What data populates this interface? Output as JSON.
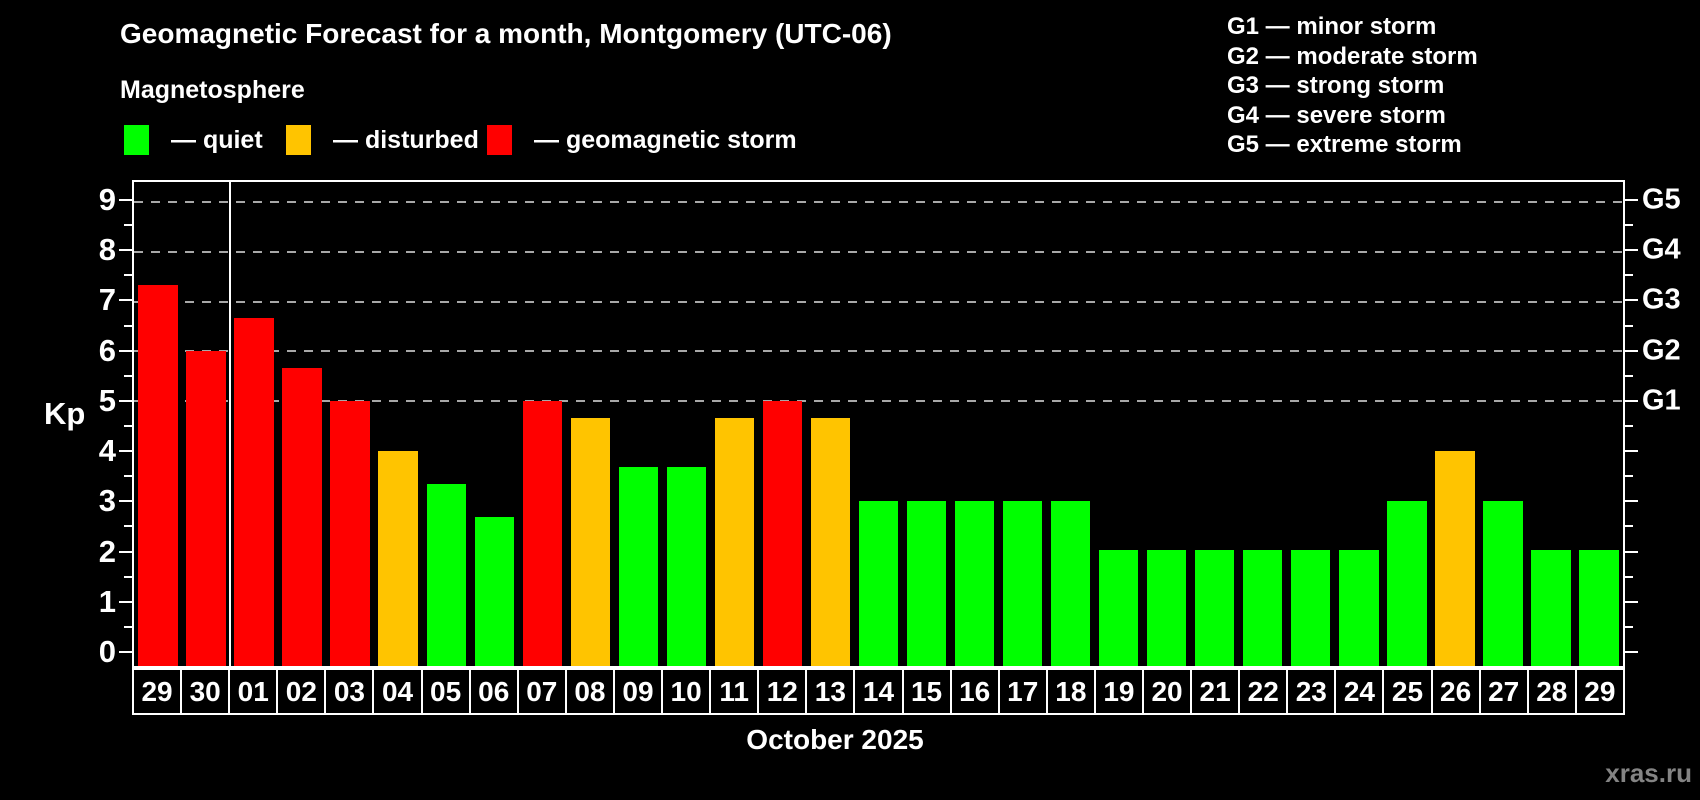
{
  "header": {
    "title": "Geomagnetic Forecast for a month, Montgomery (UTC-06)",
    "subtitle": "Magnetosphere"
  },
  "legend": {
    "items": [
      {
        "label": "— quiet",
        "status": "quiet"
      },
      {
        "label": "— disturbed",
        "status": "disturbed"
      },
      {
        "label": "— geomagnetic storm",
        "status": "storm"
      }
    ]
  },
  "g_scale_legend": {
    "lines": [
      "G1 — minor storm",
      "G2 — moderate storm",
      "G3 — strong storm",
      "G4 — severe storm",
      "G5 — extreme storm"
    ]
  },
  "colors": {
    "quiet": "#00ff00",
    "disturbed": "#ffc400",
    "storm": "#ff0000",
    "grid": "#a8a8a8",
    "axis": "#ffffff"
  },
  "watermark": "xras.ru",
  "chart_data": {
    "type": "bar",
    "title": "Geomagnetic Forecast for a month, Montgomery (UTC-06)",
    "xlabel": "October 2025",
    "ylabel": "Kp",
    "ylim": [
      -0.32,
      9.4
    ],
    "yticks": [
      0,
      1,
      2,
      3,
      4,
      5,
      6,
      7,
      8,
      9
    ],
    "minor_tick_step": 0.5,
    "grid_values": [
      5,
      6,
      7,
      8,
      9
    ],
    "grid_style": "dashed",
    "right_axis_labels": [
      {
        "label": "G5",
        "kp": 9
      },
      {
        "label": "G4",
        "kp": 8
      },
      {
        "label": "G3",
        "kp": 7
      },
      {
        "label": "G2",
        "kp": 6
      },
      {
        "label": "G1",
        "kp": 5
      }
    ],
    "month_separator_after_index": 1,
    "categories": [
      "29",
      "30",
      "01",
      "02",
      "03",
      "04",
      "05",
      "06",
      "07",
      "08",
      "09",
      "10",
      "11",
      "12",
      "13",
      "14",
      "15",
      "16",
      "17",
      "18",
      "19",
      "20",
      "21",
      "22",
      "23",
      "24",
      "25",
      "26",
      "27",
      "28",
      "29"
    ],
    "values": [
      7.33,
      6,
      6.67,
      5.67,
      5,
      4,
      3.33,
      2.67,
      5,
      4.67,
      3.67,
      3.67,
      4.67,
      5,
      4.67,
      3,
      3,
      3,
      3,
      3,
      2,
      2,
      2,
      2,
      2,
      2,
      3,
      4,
      3,
      2,
      2
    ],
    "statuses": [
      "storm",
      "storm",
      "storm",
      "storm",
      "storm",
      "disturbed",
      "quiet",
      "quiet",
      "storm",
      "disturbed",
      "quiet",
      "quiet",
      "disturbed",
      "storm",
      "disturbed",
      "quiet",
      "quiet",
      "quiet",
      "quiet",
      "quiet",
      "quiet",
      "quiet",
      "quiet",
      "quiet",
      "quiet",
      "quiet",
      "quiet",
      "disturbed",
      "quiet",
      "quiet",
      "quiet"
    ]
  }
}
